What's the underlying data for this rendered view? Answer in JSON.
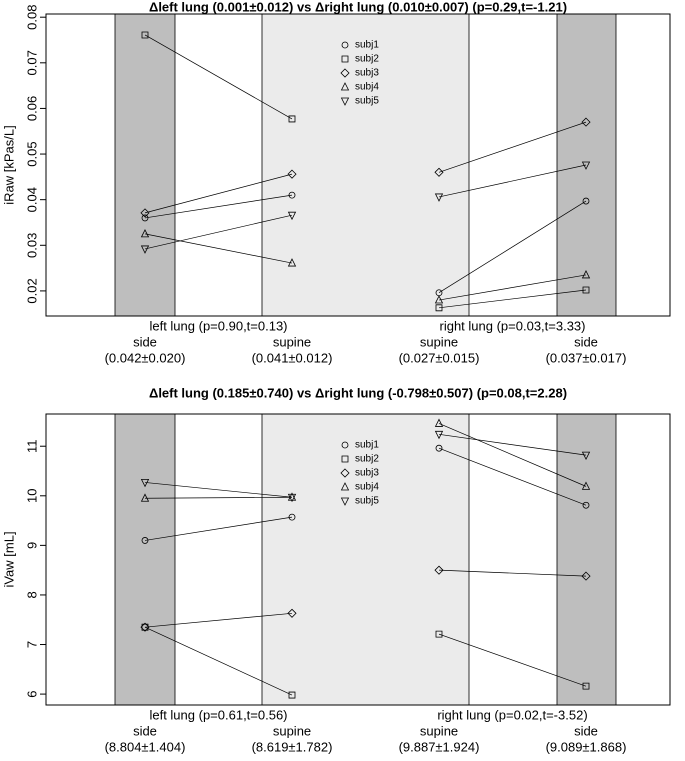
{
  "chart_data": [
    {
      "type": "paired-scatter",
      "title": "Δleft lung (0.001±0.012) vs Δright lung (0.010±0.007) (p=0.29,t=-1.21)",
      "y_label": "iRaw [kPas/L]",
      "categories": [
        "side",
        "supine",
        "supine",
        "side"
      ],
      "category_stats": [
        "(0.042±0.020)",
        "(0.041±0.012)",
        "(0.027±0.015)",
        "(0.037±0.017)"
      ],
      "groups": [
        "left lung (p=0.90,t=0.13)",
        "right lung (p=0.03,t=3.33)"
      ],
      "ylim": [
        0.0145,
        0.0807
      ],
      "yticks": [
        0.02,
        0.03,
        0.04,
        0.05,
        0.06,
        0.07,
        0.08
      ],
      "series": [
        {
          "name": "subj1",
          "marker": "circle",
          "color": "#000000",
          "values": [
            0.036,
            0.041,
            0.0196,
            0.0397
          ]
        },
        {
          "name": "subj2",
          "marker": "square",
          "color": "#000000",
          "values": [
            0.0761,
            0.0577,
            0.0163,
            0.0202
          ]
        },
        {
          "name": "subj3",
          "marker": "diamond",
          "color": "#000000",
          "values": [
            0.0371,
            0.0456,
            0.046,
            0.057
          ]
        },
        {
          "name": "subj4",
          "marker": "triangle",
          "color": "#000000",
          "values": [
            0.0325,
            0.0261,
            0.018,
            0.0235
          ]
        },
        {
          "name": "subj5",
          "marker": "triangle-down",
          "color": "#000000",
          "values": [
            0.0292,
            0.0366,
            0.0406,
            0.0476
          ]
        }
      ]
    },
    {
      "type": "paired-scatter",
      "title": "Δleft lung (0.185±0.740) vs Δright lung (-0.798±0.507) (p=0.08,t=2.28)",
      "y_label": "iVaw [mL]",
      "categories": [
        "side",
        "supine",
        "supine",
        "side"
      ],
      "category_stats": [
        "(8.804±1.404)",
        "(8.619±1.782)",
        "(9.887±1.924)",
        "(9.089±1.868)"
      ],
      "groups": [
        "left lung (p=0.61,t=0.56)",
        "right lung (p=0.02,t=-3.52)"
      ],
      "ylim": [
        5.78,
        11.65
      ],
      "yticks": [
        6,
        7,
        8,
        9,
        10,
        11
      ],
      "series": [
        {
          "name": "subj1",
          "marker": "circle",
          "color": "#000000",
          "values": [
            9.1,
            9.57,
            10.96,
            9.81
          ]
        },
        {
          "name": "subj2",
          "marker": "square",
          "color": "#000000",
          "values": [
            7.35,
            5.98,
            7.21,
            6.16
          ]
        },
        {
          "name": "subj3",
          "marker": "diamond",
          "color": "#000000",
          "values": [
            7.35,
            7.63,
            8.5,
            8.38
          ]
        },
        {
          "name": "subj4",
          "marker": "triangle",
          "color": "#000000",
          "values": [
            9.95,
            9.97,
            11.46,
            10.19
          ]
        },
        {
          "name": "subj5",
          "marker": "triangle-down",
          "color": "#000000",
          "values": [
            10.27,
            9.97,
            11.24,
            10.82
          ]
        }
      ]
    }
  ]
}
